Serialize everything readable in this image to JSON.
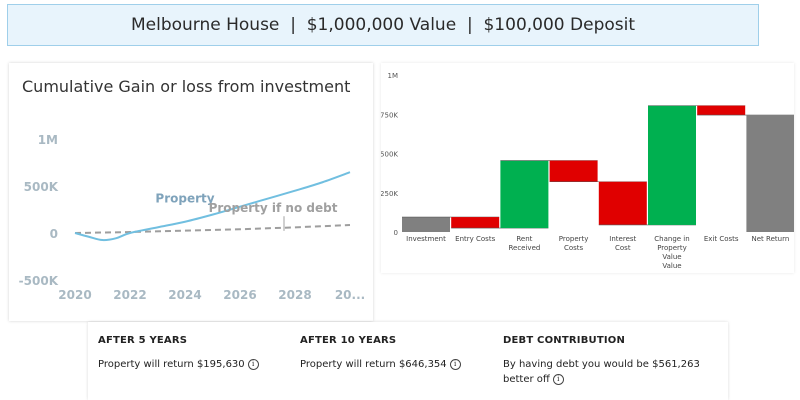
{
  "header": {
    "title": "Melbourne House  |  $1,000,000 Value  |  $100,000 Deposit"
  },
  "line_panel": {
    "title": "Cumulative Gain or loss from investment"
  },
  "summary": {
    "col1": {
      "title": "AFTER 5 YEARS",
      "text": "Property will return $195,630"
    },
    "col2": {
      "title": "AFTER 10 YEARS",
      "text": "Property will return $646,354"
    },
    "col3": {
      "title": "DEBT CONTRIBUTION",
      "text": "By having debt you would be $561,263 better off"
    },
    "info_glyph": "i"
  },
  "colors": {
    "property_line": "#71bfe0",
    "no_debt_line": "#9e9e9e",
    "increase": "#00b050",
    "decrease": "#e00000",
    "total": "#808080"
  },
  "chart_data": [
    {
      "type": "line",
      "title": "Cumulative Gain or loss from investment",
      "x_tick_labels": [
        "2020",
        "2022",
        "2024",
        "2026",
        "2028",
        "20..."
      ],
      "y_tick_labels": [
        "1M",
        "500K",
        "0",
        "-500K"
      ],
      "ylim": [
        -500000,
        1000000
      ],
      "xlim": [
        2020,
        2030
      ],
      "grid": false,
      "series": [
        {
          "name": "Property",
          "x": [
            2020,
            2020.5,
            2021,
            2021.5,
            2022,
            2023,
            2024,
            2025,
            2026,
            2027,
            2028,
            2029,
            2030
          ],
          "y": [
            0,
            -40000,
            -75000,
            -55000,
            0,
            60000,
            120000,
            195630,
            280000,
            365000,
            450000,
            540000,
            646354
          ]
        },
        {
          "name": "Property if no debt",
          "x": [
            2020,
            2022,
            2024,
            2026,
            2028,
            2030
          ],
          "y": [
            0,
            10000,
            25000,
            40000,
            60000,
            85091
          ]
        }
      ]
    },
    {
      "type": "bar",
      "subtype": "waterfall",
      "categories": [
        "Investment",
        "Entry Costs",
        "Rent Received",
        "Property Costs",
        "Interest Cost",
        "Change in Property Value",
        "Exit Costs",
        "Net Return"
      ],
      "category_labels": [
        [
          "Investment"
        ],
        [
          "Entry Costs"
        ],
        [
          "Rent",
          "Received"
        ],
        [
          "Property",
          "Costs"
        ],
        [
          "Interest",
          "Cost"
        ],
        [
          "Change in",
          "Property",
          "Value",
          "Value"
        ],
        [
          "Exit Costs"
        ],
        [
          "Net Return"
        ]
      ],
      "y_tick_labels": [
        "0",
        "250K",
        "500K",
        "750K",
        "1M"
      ],
      "ylim": [
        0,
        1000000
      ],
      "steps": [
        {
          "start": 0,
          "end": 95000,
          "kind": "total"
        },
        {
          "start": 95000,
          "end": 25000,
          "kind": "decrease"
        },
        {
          "start": 25000,
          "end": 455000,
          "kind": "increase"
        },
        {
          "start": 455000,
          "end": 320000,
          "kind": "decrease"
        },
        {
          "start": 320000,
          "end": 45000,
          "kind": "decrease"
        },
        {
          "start": 45000,
          "end": 805000,
          "kind": "increase"
        },
        {
          "start": 805000,
          "end": 745000,
          "kind": "decrease"
        },
        {
          "start": 0,
          "end": 745000,
          "kind": "total"
        }
      ]
    }
  ]
}
